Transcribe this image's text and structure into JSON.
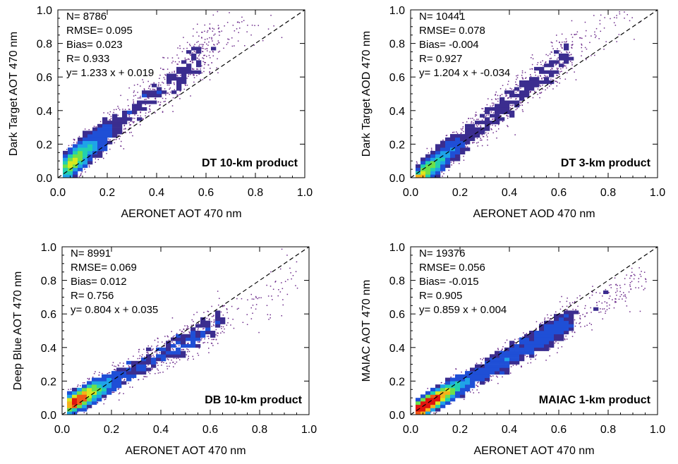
{
  "chart_data": [
    {
      "type": "scatter",
      "xlabel": "AERONET AOT 470 nm",
      "ylabel": "Dark Target AOT 470 nm",
      "xlim": [
        0,
        1
      ],
      "ylim": [
        0,
        1
      ],
      "xticks": [
        "0.0",
        "0.2",
        "0.4",
        "0.6",
        "0.8",
        "1.0"
      ],
      "yticks": [
        "0.0",
        "0.2",
        "0.4",
        "0.6",
        "0.8",
        "1.0"
      ],
      "stats": [
        "N=  8786",
        "RMSE= 0.095",
        "Bias=  0.023",
        "R=  0.933",
        "y=  1.233 x +  0.019"
      ],
      "product_label": "DT 10-km product",
      "fit": {
        "slope": 1.233,
        "intercept": 0.019
      },
      "n": 8786,
      "spread": 0.085,
      "bias": 0.023,
      "density": 0.65
    },
    {
      "type": "scatter",
      "xlabel": "AERONET AOD 470 nm",
      "ylabel": "Dark Target AOD 470 nm",
      "xlim": [
        0,
        1
      ],
      "ylim": [
        0,
        1
      ],
      "xticks": [
        "0.0",
        "0.2",
        "0.4",
        "0.6",
        "0.8",
        "1.0"
      ],
      "yticks": [
        "0.0",
        "0.2",
        "0.4",
        "0.6",
        "0.8",
        "1.0"
      ],
      "stats": [
        "N= 10441",
        "RMSE= 0.078",
        "Bias=  -0.004",
        "R=  0.927",
        "y=  1.204 x +  -0.034"
      ],
      "product_label": "DT 3-km product",
      "fit": {
        "slope": 1.204,
        "intercept": -0.034
      },
      "n": 10441,
      "spread": 0.07,
      "bias": -0.004,
      "density": 0.75
    },
    {
      "type": "scatter",
      "xlabel": "AERONET AOT 470 nm",
      "ylabel": "Deep Blue AOT 470 nm",
      "xlim": [
        0,
        1
      ],
      "ylim": [
        0,
        1
      ],
      "xticks": [
        "0.0",
        "0.2",
        "0.4",
        "0.6",
        "0.8",
        "1.0"
      ],
      "yticks": [
        "0.0",
        "0.2",
        "0.4",
        "0.6",
        "0.8",
        "1.0"
      ],
      "stats": [
        "N=  8991",
        "RMSE= 0.069",
        "Bias=  0.012",
        "R=  0.756",
        "y=  0.804 x +  0.035"
      ],
      "product_label": "DB 10-km product",
      "fit": {
        "slope": 0.804,
        "intercept": 0.035
      },
      "n": 8991,
      "spread": 0.06,
      "bias": 0.012,
      "density": 1.0
    },
    {
      "type": "scatter",
      "xlabel": "AERONET AOT 470 nm",
      "ylabel": "MAIAC AOT 470 nm",
      "xlim": [
        0,
        1
      ],
      "ylim": [
        0,
        1
      ],
      "xticks": [
        "0.0",
        "0.2",
        "0.4",
        "0.6",
        "0.8",
        "1.0"
      ],
      "yticks": [
        "0.0",
        "0.2",
        "0.4",
        "0.6",
        "0.8",
        "1.0"
      ],
      "stats": [
        "N= 19376",
        "RMSE= 0.056",
        "Bias=  -0.015",
        "R=  0.905",
        "y=  0.859 x +  0.004"
      ],
      "product_label": "MAIAC 1-km product",
      "fit": {
        "slope": 0.859,
        "intercept": 0.004
      },
      "n": 19376,
      "spread": 0.05,
      "bias": -0.015,
      "density": 1.5
    }
  ],
  "colors": {
    "scatter_point": "#6b2a8a",
    "one_to_one_line": "#000000",
    "density_scale": [
      "#3b2d8f",
      "#1f4fd6",
      "#1fa3e8",
      "#22d0b0",
      "#6ee04a",
      "#d8e81e",
      "#f5b21a",
      "#f15a16",
      "#e0140f"
    ]
  }
}
